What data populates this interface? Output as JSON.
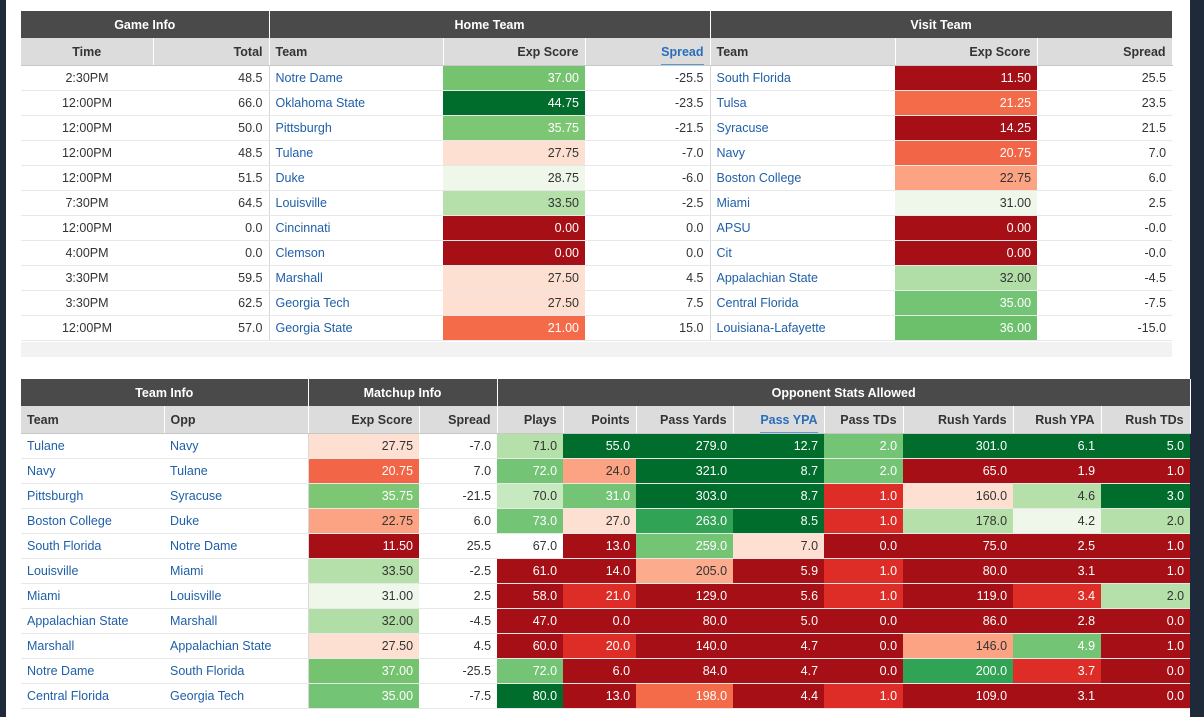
{
  "game_table": {
    "groups": [
      "Game Info",
      "Home Team",
      "Visit Team"
    ],
    "columns": [
      "Time",
      "Total",
      "Team",
      "Exp Score",
      "Spread",
      "Team",
      "Exp Score",
      "Spread"
    ],
    "active_sort_column": "Spread",
    "rows": [
      {
        "time": "2:30PM",
        "total": "48.5",
        "home_team": "Notre Dame",
        "home_exp": "37.00",
        "home_spread": "-25.5",
        "visit_team": "South Florida",
        "visit_exp": "11.50",
        "visit_spread": "25.5",
        "home_color": "#76c36f",
        "visit_color": "#a50f15"
      },
      {
        "time": "12:00PM",
        "total": "66.0",
        "home_team": "Oklahoma State",
        "home_exp": "44.75",
        "home_spread": "-23.5",
        "visit_team": "Tulsa",
        "visit_exp": "21.25",
        "visit_spread": "23.5",
        "home_color": "#006d2c",
        "visit_color": "#f36b48"
      },
      {
        "time": "12:00PM",
        "total": "50.0",
        "home_team": "Pittsburgh",
        "home_exp": "35.75",
        "home_spread": "-21.5",
        "visit_team": "Syracuse",
        "visit_exp": "14.25",
        "visit_spread": "21.5",
        "home_color": "#7dc673",
        "visit_color": "#a50f15"
      },
      {
        "time": "12:00PM",
        "total": "48.5",
        "home_team": "Tulane",
        "home_exp": "27.75",
        "home_spread": "-7.0",
        "visit_team": "Navy",
        "visit_exp": "20.75",
        "visit_spread": "7.0",
        "home_color": "#fde0d2",
        "visit_color": "#f26546"
      },
      {
        "time": "12:00PM",
        "total": "51.5",
        "home_team": "Duke",
        "home_exp": "28.75",
        "home_spread": "-6.0",
        "visit_team": "Boston College",
        "visit_exp": "22.75",
        "visit_spread": "6.0",
        "home_color": "#eef7ea",
        "visit_color": "#fba383"
      },
      {
        "time": "7:30PM",
        "total": "64.5",
        "home_team": "Louisville",
        "home_exp": "33.50",
        "home_spread": "-2.5",
        "visit_team": "Miami",
        "visit_exp": "31.00",
        "visit_spread": "2.5",
        "home_color": "#b5e0a9",
        "visit_color": "#eef7ea"
      },
      {
        "time": "12:00PM",
        "total": "0.0",
        "home_team": "Cincinnati",
        "home_exp": "0.00",
        "home_spread": "0.0",
        "visit_team": "APSU",
        "visit_exp": "0.00",
        "visit_spread": "-0.0",
        "home_color": "#a50f15",
        "visit_color": "#a50f15"
      },
      {
        "time": "4:00PM",
        "total": "0.0",
        "home_team": "Clemson",
        "home_exp": "0.00",
        "home_spread": "0.0",
        "visit_team": "Cit",
        "visit_exp": "0.00",
        "visit_spread": "-0.0",
        "home_color": "#a50f15",
        "visit_color": "#a50f15"
      },
      {
        "time": "3:30PM",
        "total": "59.5",
        "home_team": "Marshall",
        "home_exp": "27.50",
        "home_spread": "4.5",
        "visit_team": "Appalachian State",
        "visit_exp": "32.00",
        "visit_spread": "-4.5",
        "home_color": "#fde0d2",
        "visit_color": "#b0dea6"
      },
      {
        "time": "3:30PM",
        "total": "62.5",
        "home_team": "Georgia Tech",
        "home_exp": "27.50",
        "home_spread": "7.5",
        "visit_team": "Central Florida",
        "visit_exp": "35.00",
        "visit_spread": "-7.5",
        "home_color": "#fde0d2",
        "visit_color": "#74c476"
      },
      {
        "time": "12:00PM",
        "total": "57.0",
        "home_team": "Georgia State",
        "home_exp": "21.00",
        "home_spread": "15.0",
        "visit_team": "Louisiana-Lafayette",
        "visit_exp": "36.00",
        "visit_spread": "-15.0",
        "home_color": "#f36b48",
        "visit_color": "#6cc06c"
      }
    ]
  },
  "opp_table": {
    "groups": [
      "Team Info",
      "Matchup Info",
      "Opponent Stats Allowed"
    ],
    "columns": [
      "Team",
      "Opp",
      "Exp Score",
      "Spread",
      "Plays",
      "Points",
      "Pass Yards",
      "Pass YPA",
      "Pass TDs",
      "Rush Yards",
      "Rush YPA",
      "Rush TDs"
    ],
    "active_sort_column": "Pass YPA",
    "rows": [
      {
        "team": "Tulane",
        "opp": "Navy",
        "exp": "27.75",
        "spread": "-7.0",
        "plays": "71.0",
        "points": "55.0",
        "pass_yards": "279.0",
        "pass_ypa": "12.7",
        "pass_tds": "2.0",
        "rush_yards": "301.0",
        "rush_ypa": "6.1",
        "rush_tds": "5.0",
        "colors": {
          "exp": "#fde0d2",
          "plays": "#b5e0a9",
          "points": "#006d2c",
          "pass_yards": "#006d2c",
          "pass_ypa": "#006d2c",
          "pass_tds": "#74c476",
          "rush_yards": "#006d2c",
          "rush_ypa": "#006d2c",
          "rush_tds": "#006d2c"
        }
      },
      {
        "team": "Navy",
        "opp": "Tulane",
        "exp": "20.75",
        "spread": "7.0",
        "plays": "72.0",
        "points": "24.0",
        "pass_yards": "321.0",
        "pass_ypa": "8.7",
        "pass_tds": "2.0",
        "rush_yards": "65.0",
        "rush_ypa": "1.9",
        "rush_tds": "1.0",
        "colors": {
          "exp": "#f26546",
          "plays": "#74c476",
          "points": "#fba383",
          "pass_yards": "#006d2c",
          "pass_ypa": "#006d2c",
          "pass_tds": "#74c476",
          "rush_yards": "#a50f15",
          "rush_ypa": "#a50f15",
          "rush_tds": "#a50f15"
        }
      },
      {
        "team": "Pittsburgh",
        "opp": "Syracuse",
        "exp": "35.75",
        "spread": "-21.5",
        "plays": "70.0",
        "points": "31.0",
        "pass_yards": "303.0",
        "pass_ypa": "8.7",
        "pass_tds": "1.0",
        "rush_yards": "160.0",
        "rush_ypa": "4.6",
        "rush_tds": "3.0",
        "colors": {
          "exp": "#7dc673",
          "plays": "#c7e9c0",
          "points": "#74c476",
          "pass_yards": "#006d2c",
          "pass_ypa": "#006d2c",
          "pass_tds": "#de2d26",
          "rush_yards": "#fde0d2",
          "rush_ypa": "#b5e0a9",
          "rush_tds": "#006d2c"
        }
      },
      {
        "team": "Boston College",
        "opp": "Duke",
        "exp": "22.75",
        "spread": "6.0",
        "plays": "73.0",
        "points": "27.0",
        "pass_yards": "263.0",
        "pass_ypa": "8.5",
        "pass_tds": "1.0",
        "rush_yards": "178.0",
        "rush_ypa": "4.2",
        "rush_tds": "2.0",
        "colors": {
          "exp": "#fba383",
          "plays": "#74c476",
          "points": "#fde0d2",
          "pass_yards": "#31a354",
          "pass_ypa": "#006d2c",
          "pass_tds": "#de2d26",
          "rush_yards": "#b5e0a9",
          "rush_ypa": "#eef7ea",
          "rush_tds": "#b5e0a9"
        }
      },
      {
        "team": "South Florida",
        "opp": "Notre Dame",
        "exp": "11.50",
        "spread": "25.5",
        "plays": "67.0",
        "points": "13.0",
        "pass_yards": "259.0",
        "pass_ypa": "7.0",
        "pass_tds": "0.0",
        "rush_yards": "75.0",
        "rush_ypa": "2.5",
        "rush_tds": "1.0",
        "colors": {
          "exp": "#a50f15",
          "plays": "#ffffff",
          "points": "#a50f15",
          "pass_yards": "#74c476",
          "pass_ypa": "#fde0d2",
          "pass_tds": "#a50f15",
          "rush_yards": "#a50f15",
          "rush_ypa": "#a50f15",
          "rush_tds": "#a50f15"
        }
      },
      {
        "team": "Louisville",
        "opp": "Miami",
        "exp": "33.50",
        "spread": "-2.5",
        "plays": "61.0",
        "points": "14.0",
        "pass_yards": "205.0",
        "pass_ypa": "5.9",
        "pass_tds": "1.0",
        "rush_yards": "80.0",
        "rush_ypa": "3.1",
        "rush_tds": "1.0",
        "colors": {
          "exp": "#b5e0a9",
          "plays": "#a50f15",
          "points": "#a50f15",
          "pass_yards": "#fcab8c",
          "pass_ypa": "#a50f15",
          "pass_tds": "#de2d26",
          "rush_yards": "#a50f15",
          "rush_ypa": "#a50f15",
          "rush_tds": "#a50f15"
        }
      },
      {
        "team": "Miami",
        "opp": "Louisville",
        "exp": "31.00",
        "spread": "2.5",
        "plays": "58.0",
        "points": "21.0",
        "pass_yards": "129.0",
        "pass_ypa": "5.6",
        "pass_tds": "1.0",
        "rush_yards": "119.0",
        "rush_ypa": "3.4",
        "rush_tds": "2.0",
        "colors": {
          "exp": "#eef7ea",
          "plays": "#a50f15",
          "points": "#de2d26",
          "pass_yards": "#a50f15",
          "pass_ypa": "#a50f15",
          "pass_tds": "#de2d26",
          "rush_yards": "#a50f15",
          "rush_ypa": "#de2d26",
          "rush_tds": "#b5e0a9"
        }
      },
      {
        "team": "Appalachian State",
        "opp": "Marshall",
        "exp": "32.00",
        "spread": "-4.5",
        "plays": "47.0",
        "points": "0.0",
        "pass_yards": "80.0",
        "pass_ypa": "5.0",
        "pass_tds": "0.0",
        "rush_yards": "86.0",
        "rush_ypa": "2.8",
        "rush_tds": "0.0",
        "colors": {
          "exp": "#b0dea6",
          "plays": "#a50f15",
          "points": "#a50f15",
          "pass_yards": "#a50f15",
          "pass_ypa": "#a50f15",
          "pass_tds": "#a50f15",
          "rush_yards": "#a50f15",
          "rush_ypa": "#a50f15",
          "rush_tds": "#a50f15"
        }
      },
      {
        "team": "Marshall",
        "opp": "Appalachian State",
        "exp": "27.50",
        "spread": "4.5",
        "plays": "60.0",
        "points": "20.0",
        "pass_yards": "140.0",
        "pass_ypa": "4.7",
        "pass_tds": "0.0",
        "rush_yards": "146.0",
        "rush_ypa": "4.9",
        "rush_tds": "1.0",
        "colors": {
          "exp": "#fde0d2",
          "plays": "#a50f15",
          "points": "#de2d26",
          "pass_yards": "#a50f15",
          "pass_ypa": "#a50f15",
          "pass_tds": "#a50f15",
          "rush_yards": "#fba383",
          "rush_ypa": "#74c476",
          "rush_tds": "#a50f15"
        }
      },
      {
        "team": "Notre Dame",
        "opp": "South Florida",
        "exp": "37.00",
        "spread": "-25.5",
        "plays": "72.0",
        "points": "6.0",
        "pass_yards": "84.0",
        "pass_ypa": "4.7",
        "pass_tds": "0.0",
        "rush_yards": "200.0",
        "rush_ypa": "3.7",
        "rush_tds": "0.0",
        "colors": {
          "exp": "#76c36f",
          "plays": "#74c476",
          "points": "#a50f15",
          "pass_yards": "#a50f15",
          "pass_ypa": "#a50f15",
          "pass_tds": "#a50f15",
          "rush_yards": "#31a354",
          "rush_ypa": "#de2d26",
          "rush_tds": "#a50f15"
        }
      },
      {
        "team": "Central Florida",
        "opp": "Georgia Tech",
        "exp": "35.00",
        "spread": "-7.5",
        "plays": "80.0",
        "points": "13.0",
        "pass_yards": "198.0",
        "pass_ypa": "4.4",
        "pass_tds": "1.0",
        "rush_yards": "109.0",
        "rush_ypa": "3.1",
        "rush_tds": "0.0",
        "colors": {
          "exp": "#74c476",
          "plays": "#006d2c",
          "points": "#a50f15",
          "pass_yards": "#f36b48",
          "pass_ypa": "#a50f15",
          "pass_tds": "#de2d26",
          "rush_yards": "#a50f15",
          "rush_ypa": "#a50f15",
          "rush_tds": "#a50f15"
        }
      }
    ]
  }
}
